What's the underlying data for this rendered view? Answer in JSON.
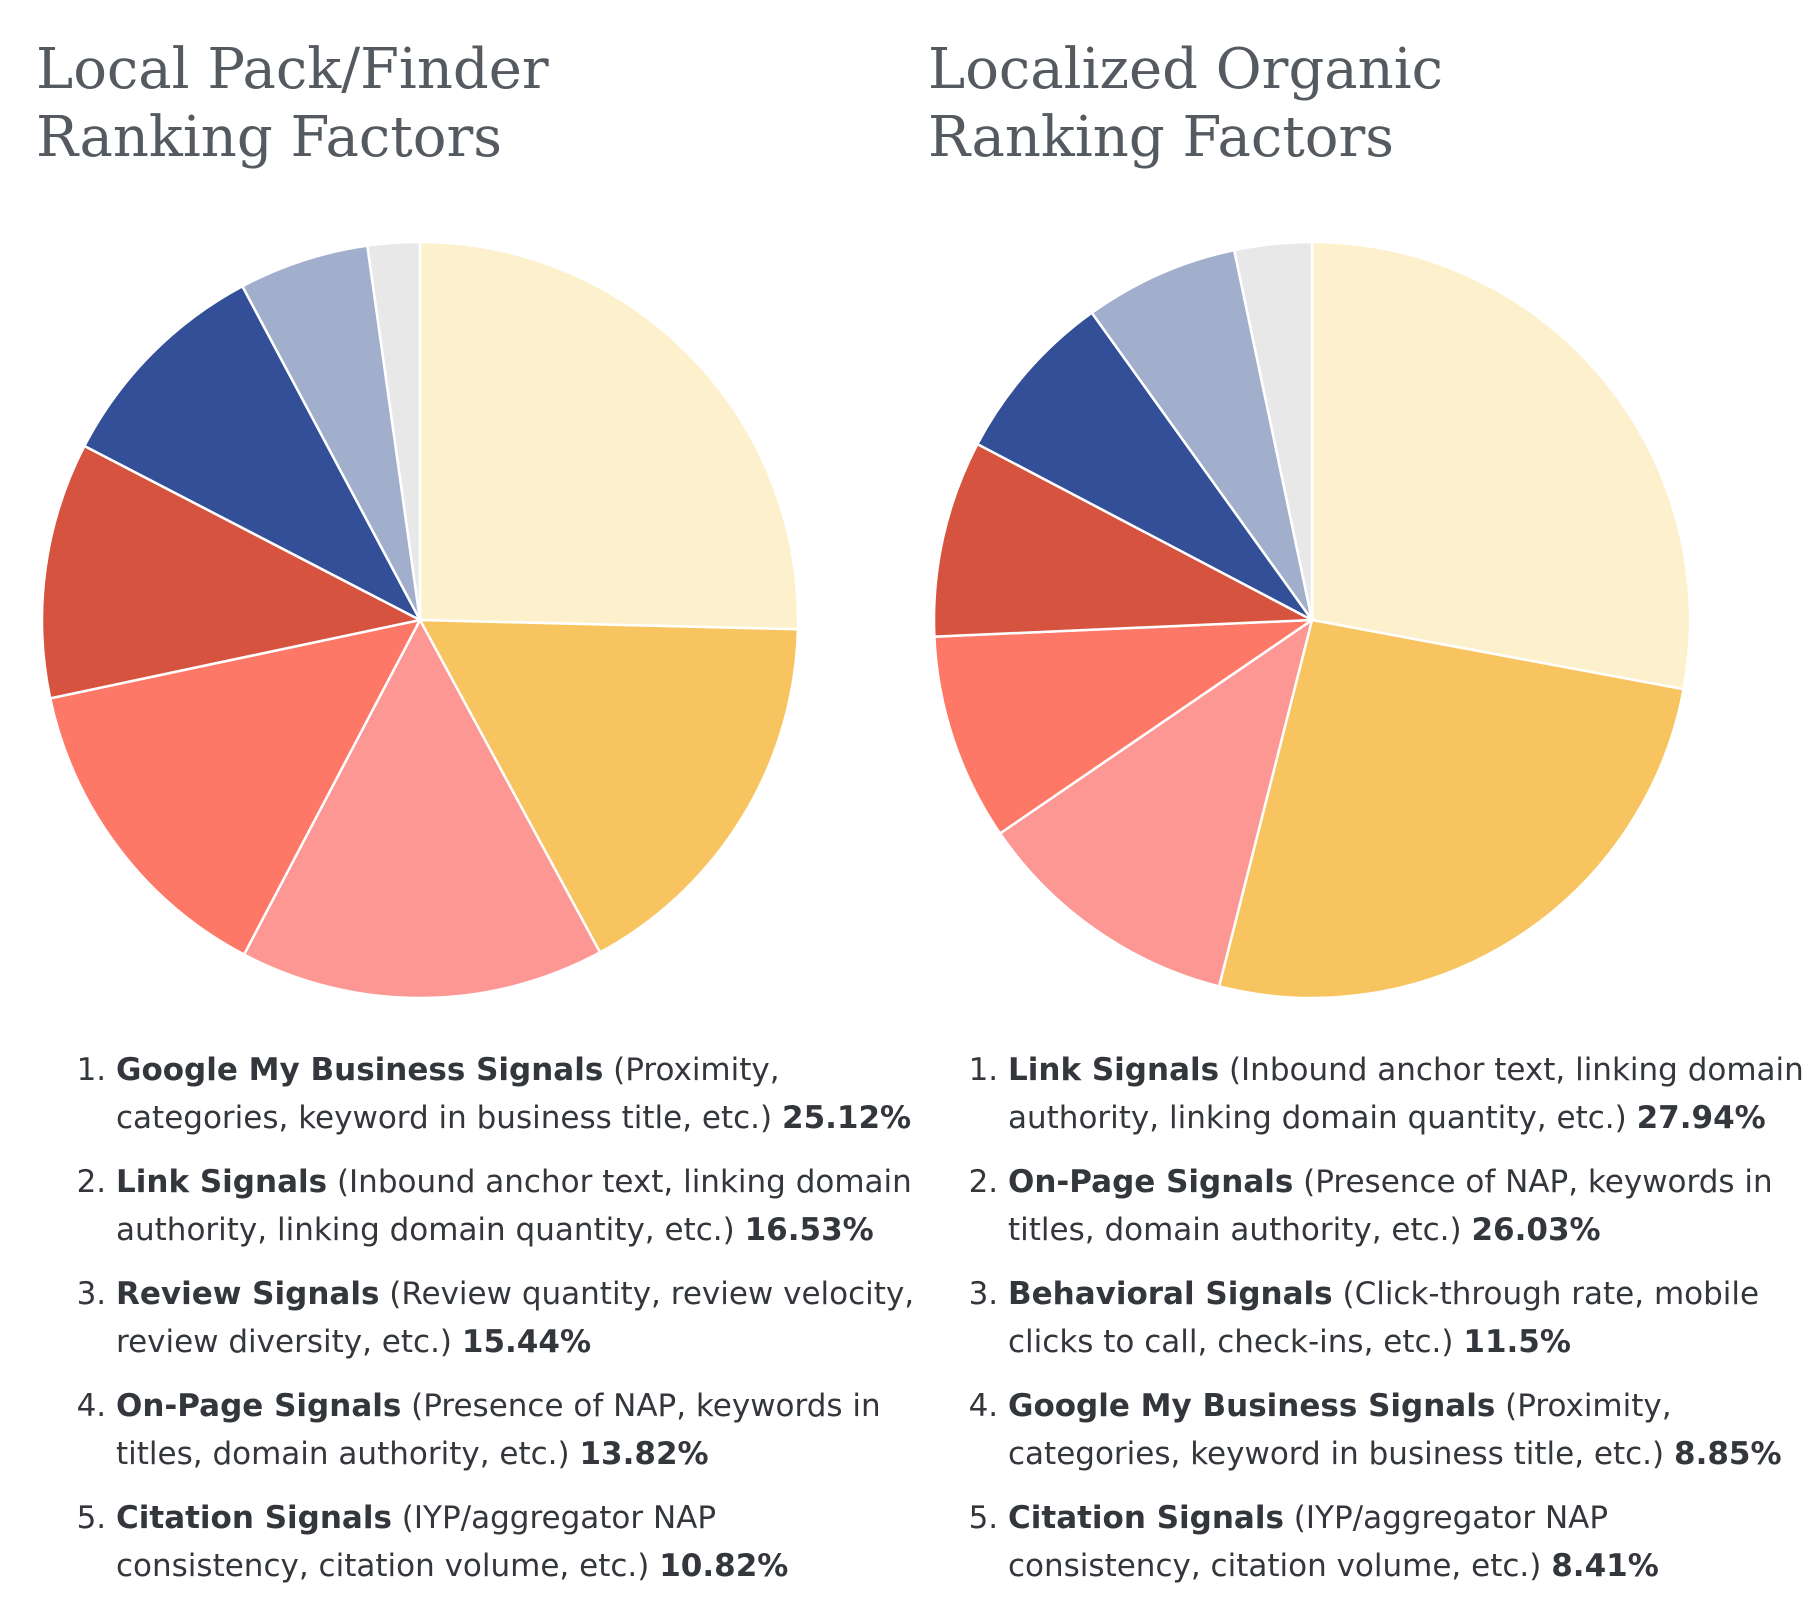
{
  "chart_data": [
    {
      "type": "pie",
      "title": "Local Pack/Finder Ranking Factors",
      "slices": [
        {
          "name": "Google My Business Signals",
          "detail": "(Proximity, categories, keyword in business title, etc.)",
          "value": 25.12,
          "label": "25.12%",
          "color": "#fdf1cd"
        },
        {
          "name": "Link Signals",
          "detail": "(Inbound anchor text, linking domain authority, linking domain quantity, etc.)",
          "value": 16.53,
          "label": "16.53%",
          "color": "#f8c45f"
        },
        {
          "name": "Review Signals",
          "detail": "(Review quantity, review velocity, review diversity, etc.)",
          "value": 15.44,
          "label": "15.44%",
          "color": "#fd9793"
        },
        {
          "name": "On-Page Signals",
          "detail": "(Presence of NAP, keywords in titles, domain authority, etc.)",
          "value": 13.82,
          "label": "13.82%",
          "color": "#fd7866"
        },
        {
          "name": "Citation Signals",
          "detail": "(IYP/aggregator NAP consistency, citation volume, etc.)",
          "value": 10.82,
          "label": "10.82%",
          "color": "#d6543f"
        },
        {
          "value": 9.5,
          "color": "#324f97"
        },
        {
          "value": 5.5,
          "color": "#a2afcc"
        },
        {
          "value": 2.2,
          "color": "#e9e8e9"
        }
      ]
    },
    {
      "type": "pie",
      "title": "Localized Organic Ranking Factors",
      "slices": [
        {
          "name": "Link Signals",
          "detail": "(Inbound anchor text, linking domain authority, linking domain quantity, etc.)",
          "value": 27.94,
          "label": "27.94%",
          "color": "#fdf1cd"
        },
        {
          "name": "On-Page Signals",
          "detail": "(Presence of NAP, keywords in titles, domain authority, etc.)",
          "value": 26.03,
          "label": "26.03%",
          "color": "#f8c45f"
        },
        {
          "name": "Behavioral Signals",
          "detail": "(Click-through rate, mobile clicks to call, check-ins, etc.)",
          "value": 11.5,
          "label": "11.5%",
          "color": "#fd9793"
        },
        {
          "name": "Google My Business Signals",
          "detail": "(Proximity, categories, keyword in business title, etc.)",
          "value": 8.85,
          "label": "8.85%",
          "color": "#fd7866"
        },
        {
          "name": "Citation Signals",
          "detail": "(IYP/aggregator NAP consistency, citation volume, etc.)",
          "value": 8.41,
          "label": "8.41%",
          "color": "#d6543f"
        },
        {
          "value": 7.4,
          "color": "#324f97"
        },
        {
          "value": 6.6,
          "color": "#a2afcc"
        },
        {
          "value": 3.3,
          "color": "#e9e8e9"
        }
      ]
    }
  ]
}
